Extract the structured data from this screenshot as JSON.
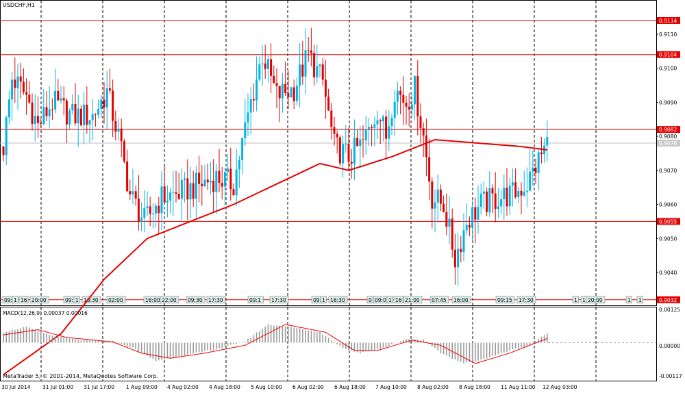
{
  "app": {
    "symbol": "USDCHF,H1",
    "footer": "MetaTrader 5, © 2001-2014, MetaQuotes Software Corp."
  },
  "colors": {
    "bull": "#00b4e6",
    "bear": "#e60000",
    "line": "#e60000",
    "macd_hist": "#9a9a9a",
    "grid": "#000000",
    "event_fill": "#d8ece8"
  },
  "chart_data": [
    {
      "type": "candlestick",
      "title": "USDCHF,H1",
      "ylim": [
        0.9032,
        0.9122
      ],
      "y_ticks": [
        "0.9110",
        "0.9100",
        "0.9090",
        "0.9080",
        "0.9070",
        "0.9060",
        "0.9050",
        "0.9040"
      ],
      "grid": "vertical dashed",
      "horizontal_levels": [
        {
          "label": "0.9114",
          "value": 0.9114
        },
        {
          "label": "0.9104",
          "value": 0.9104
        },
        {
          "label": "0.9082",
          "value": 0.9082
        },
        {
          "label": "0.9055",
          "value": 0.9055
        }
      ],
      "current_price": {
        "label": "0.9078",
        "value": 0.9078
      },
      "event_price": {
        "label": "0.9032",
        "value": 0.9032
      },
      "x_labels": [
        "30 Jul 2014",
        "31 Jul 01:00",
        "31 Jul 17:00",
        "1 Aug 09:00",
        "4 Aug 02:00",
        "4 Aug 18:00",
        "5 Aug 10:00",
        "6 Aug 02:00",
        "6 Aug 18:00",
        "7 Aug 10:00",
        "8 Aug 02:00",
        "8 Aug 18:00",
        "11 Aug 11:00",
        "12 Aug 03:00"
      ],
      "event_labels": [
        "09:",
        "1",
        "16",
        "20:00",
        "09:",
        "1",
        "16:30",
        "02:00",
        "16:00",
        "22:00",
        "09:30",
        "17:30",
        "09:1",
        "17:30",
        "09:",
        "1",
        "16:30",
        "0",
        "09:0",
        "1",
        "16",
        "21:00",
        "07:45",
        "16:00",
        "09:15",
        "17:30",
        "1",
        "1",
        "20:00",
        "1",
        "1"
      ],
      "anchors": [
        {
          "i": 0,
          "v": 0.9077
        },
        {
          "i": 3,
          "v": 0.9097
        },
        {
          "i": 8,
          "v": 0.9092
        },
        {
          "i": 12,
          "v": 0.9083
        },
        {
          "i": 17,
          "v": 0.909
        },
        {
          "i": 24,
          "v": 0.9086
        },
        {
          "i": 31,
          "v": 0.9086
        },
        {
          "i": 36,
          "v": 0.9093
        },
        {
          "i": 40,
          "v": 0.908
        },
        {
          "i": 44,
          "v": 0.9063
        },
        {
          "i": 49,
          "v": 0.9055
        },
        {
          "i": 55,
          "v": 0.9062
        },
        {
          "i": 60,
          "v": 0.9063
        },
        {
          "i": 66,
          "v": 0.9065
        },
        {
          "i": 74,
          "v": 0.9068
        },
        {
          "i": 80,
          "v": 0.9066
        },
        {
          "i": 86,
          "v": 0.909
        },
        {
          "i": 90,
          "v": 0.9104
        },
        {
          "i": 95,
          "v": 0.9092
        },
        {
          "i": 101,
          "v": 0.9094
        },
        {
          "i": 106,
          "v": 0.9104
        },
        {
          "i": 111,
          "v": 0.9096
        },
        {
          "i": 115,
          "v": 0.9077
        },
        {
          "i": 120,
          "v": 0.9074
        },
        {
          "i": 125,
          "v": 0.9078
        },
        {
          "i": 130,
          "v": 0.9088
        },
        {
          "i": 133,
          "v": 0.908
        },
        {
          "i": 136,
          "v": 0.9094
        },
        {
          "i": 140,
          "v": 0.909
        },
        {
          "i": 143,
          "v": 0.9094
        },
        {
          "i": 146,
          "v": 0.908
        },
        {
          "i": 149,
          "v": 0.9062
        },
        {
          "i": 153,
          "v": 0.906
        },
        {
          "i": 157,
          "v": 0.9044
        },
        {
          "i": 161,
          "v": 0.9055
        },
        {
          "i": 166,
          "v": 0.906
        },
        {
          "i": 172,
          "v": 0.9062
        },
        {
          "i": 177,
          "v": 0.9063
        },
        {
          "i": 182,
          "v": 0.9066
        },
        {
          "i": 186,
          "v": 0.9073
        },
        {
          "i": 189,
          "v": 0.9078
        }
      ],
      "sma_anchors": [
        {
          "i": 0,
          "v": 0.901
        },
        {
          "i": 20,
          "v": 0.9022
        },
        {
          "i": 35,
          "v": 0.9038
        },
        {
          "i": 50,
          "v": 0.905
        },
        {
          "i": 65,
          "v": 0.9055
        },
        {
          "i": 80,
          "v": 0.906
        },
        {
          "i": 95,
          "v": 0.9066
        },
        {
          "i": 110,
          "v": 0.9072
        },
        {
          "i": 120,
          "v": 0.907
        },
        {
          "i": 135,
          "v": 0.9074
        },
        {
          "i": 150,
          "v": 0.9079
        },
        {
          "i": 165,
          "v": 0.9078
        },
        {
          "i": 180,
          "v": 0.9077
        },
        {
          "i": 189,
          "v": 0.9076
        }
      ]
    },
    {
      "type": "bar",
      "title": "MACD(12,26,9) 0.00037 0.00016",
      "ylim": [
        -0.00125,
        0.00125
      ],
      "y_ticks": [
        "0.00125",
        "0.00000",
        "-0.00117"
      ],
      "anchors": [
        {
          "i": 0,
          "v": 0.0004
        },
        {
          "i": 8,
          "v": 0.0006
        },
        {
          "i": 16,
          "v": 0.0003
        },
        {
          "i": 26,
          "v": 0.0001
        },
        {
          "i": 38,
          "v": 5e-05
        },
        {
          "i": 45,
          "v": -0.0002
        },
        {
          "i": 53,
          "v": -0.0007
        },
        {
          "i": 62,
          "v": -0.0005
        },
        {
          "i": 74,
          "v": -0.00025
        },
        {
          "i": 84,
          "v": 5e-05
        },
        {
          "i": 92,
          "v": 0.0007
        },
        {
          "i": 100,
          "v": 0.0006
        },
        {
          "i": 110,
          "v": 0.0004
        },
        {
          "i": 118,
          "v": -0.0002
        },
        {
          "i": 124,
          "v": -0.0004
        },
        {
          "i": 132,
          "v": -0.0002
        },
        {
          "i": 140,
          "v": 0.00015
        },
        {
          "i": 146,
          "v": 0.0001
        },
        {
          "i": 152,
          "v": -0.0004
        },
        {
          "i": 160,
          "v": -0.0008
        },
        {
          "i": 168,
          "v": -0.0006
        },
        {
          "i": 176,
          "v": -0.0003
        },
        {
          "i": 183,
          "v": -0.0001
        },
        {
          "i": 189,
          "v": 0.00037
        }
      ],
      "signal_anchors": [
        {
          "i": 0,
          "v": 0.0003
        },
        {
          "i": 12,
          "v": 0.0005
        },
        {
          "i": 22,
          "v": 0.0002
        },
        {
          "i": 38,
          "v": 3e-05
        },
        {
          "i": 48,
          "v": -0.0004
        },
        {
          "i": 58,
          "v": -0.0006
        },
        {
          "i": 70,
          "v": -0.0004
        },
        {
          "i": 84,
          "v": -0.0001
        },
        {
          "i": 98,
          "v": 0.0007
        },
        {
          "i": 112,
          "v": 0.0004
        },
        {
          "i": 122,
          "v": -0.0003
        },
        {
          "i": 130,
          "v": -0.0003
        },
        {
          "i": 142,
          "v": 0.0001
        },
        {
          "i": 152,
          "v": -0.0001
        },
        {
          "i": 164,
          "v": -0.0008
        },
        {
          "i": 176,
          "v": -0.0004
        },
        {
          "i": 189,
          "v": 0.00016
        }
      ]
    }
  ]
}
